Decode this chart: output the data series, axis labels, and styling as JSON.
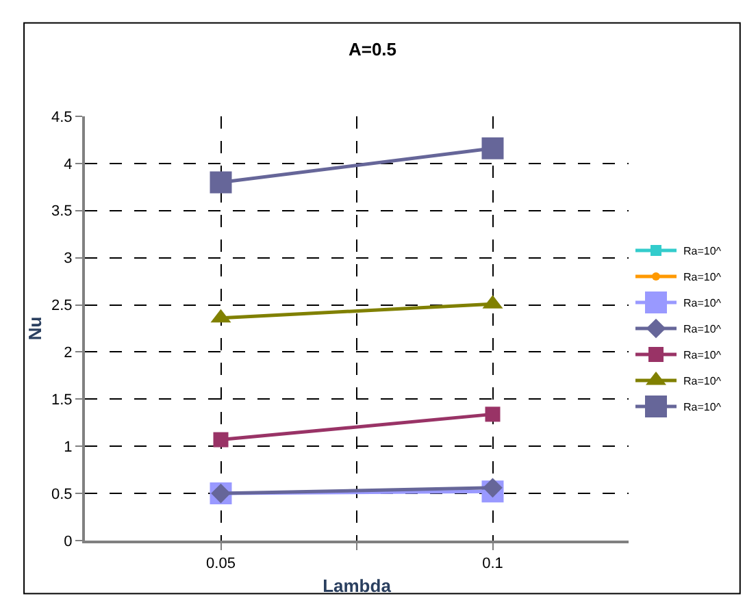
{
  "chart_data": {
    "type": "line",
    "title": "A=0.5",
    "xlabel": "Lambda",
    "ylabel": "Nu",
    "x": [
      0.05,
      0.1
    ],
    "series": [
      {
        "name": "Ra=10^",
        "color": "#33cccc",
        "marker": "square",
        "values": [
          null,
          null
        ]
      },
      {
        "name": "Ra=10^",
        "color": "#ff9900",
        "marker": "circle",
        "values": [
          null,
          null
        ]
      },
      {
        "name": "Ra=10^",
        "color": "#9999ff",
        "marker": "square",
        "values": [
          0.5,
          0.52
        ]
      },
      {
        "name": "Ra=10^",
        "color": "#666699",
        "marker": "diamond",
        "values": [
          0.5,
          0.56
        ]
      },
      {
        "name": "Ra=10^",
        "color": "#993366",
        "marker": "square",
        "values": [
          1.07,
          1.34
        ]
      },
      {
        "name": "Ra=10^",
        "color": "#808000",
        "marker": "triangle",
        "values": [
          2.36,
          2.51
        ]
      },
      {
        "name": "Ra=10^",
        "color": "#666699",
        "marker": "square",
        "values": [
          3.8,
          4.16
        ]
      }
    ],
    "xlim": [
      0.025,
      0.125
    ],
    "xticks": [
      0.05,
      {
        "value": 0.075,
        "label": null
      },
      0.1
    ],
    "ylim": [
      0,
      4.5
    ],
    "yticks": [
      0,
      0.5,
      1,
      1.5,
      2,
      2.5,
      3,
      3.5,
      4,
      4.5
    ],
    "grid": true,
    "legend": "right",
    "line_style": "solid"
  }
}
